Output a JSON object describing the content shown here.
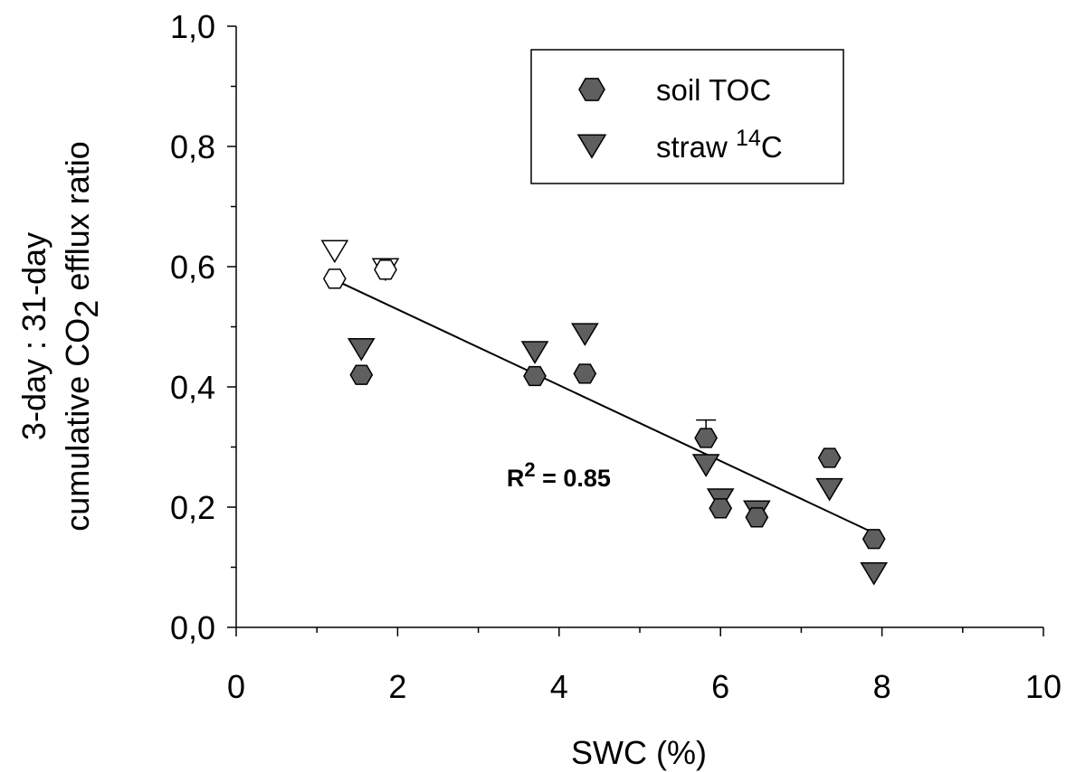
{
  "chart_data": {
    "type": "scatter",
    "xlabel": "SWC (%)",
    "ylabel_line1": "3-day : 31-day",
    "ylabel_line2_pre": "cumulative CO",
    "ylabel_line2_sub": "2",
    "ylabel_line2_post": " efflux ratio",
    "xlim": [
      0,
      10
    ],
    "ylim": [
      0,
      1.0
    ],
    "x_ticks": [
      0,
      2,
      4,
      6,
      8,
      10
    ],
    "x_tick_labels": [
      "0",
      "2",
      "4",
      "6",
      "8",
      "10"
    ],
    "y_ticks": [
      0,
      0.2,
      0.4,
      0.6,
      0.8,
      1.0
    ],
    "y_tick_labels": [
      "0,0",
      "0,2",
      "0,4",
      "0,6",
      "0,8",
      "1,0"
    ],
    "grid": false,
    "legend_position": "top-right",
    "series": [
      {
        "name": "soil TOC",
        "marker": "hexagon",
        "color": "#5f5f5f",
        "points": [
          {
            "x": 1.22,
            "y": 0.58,
            "filled": false
          },
          {
            "x": 1.55,
            "y": 0.42,
            "filled": true
          },
          {
            "x": 1.85,
            "y": 0.595,
            "filled": false
          },
          {
            "x": 3.7,
            "y": 0.418,
            "filled": true
          },
          {
            "x": 4.32,
            "y": 0.422,
            "filled": true
          },
          {
            "x": 5.82,
            "y": 0.315,
            "filled": true,
            "err": 0.03
          },
          {
            "x": 6.0,
            "y": 0.198,
            "filled": true
          },
          {
            "x": 6.45,
            "y": 0.183,
            "filled": true
          },
          {
            "x": 7.35,
            "y": 0.282,
            "filled": true
          },
          {
            "x": 7.9,
            "y": 0.147,
            "filled": true
          }
        ]
      },
      {
        "name": "straw 14C",
        "name_pre": "straw ",
        "name_sup": "14",
        "name_post": "C",
        "marker": "triangle-down",
        "color": "#5f5f5f",
        "points": [
          {
            "x": 1.22,
            "y": 0.628,
            "filled": false
          },
          {
            "x": 1.55,
            "y": 0.465,
            "filled": true
          },
          {
            "x": 1.85,
            "y": 0.598,
            "filled": false
          },
          {
            "x": 3.7,
            "y": 0.46,
            "filled": true
          },
          {
            "x": 4.32,
            "y": 0.49,
            "filled": true
          },
          {
            "x": 5.82,
            "y": 0.272,
            "filled": true
          },
          {
            "x": 6.0,
            "y": 0.215,
            "filled": true
          },
          {
            "x": 6.45,
            "y": 0.195,
            "filled": true
          },
          {
            "x": 7.35,
            "y": 0.232,
            "filled": true
          },
          {
            "x": 7.9,
            "y": 0.092,
            "filled": true
          }
        ]
      }
    ],
    "regression": {
      "x1": 1.22,
      "y1": 0.578,
      "x2": 7.9,
      "y2": 0.157
    },
    "annotation": {
      "text_pre": "R",
      "text_sup": "2",
      "text_post": " = 0.85",
      "x": 3.35,
      "y": 0.25
    }
  }
}
